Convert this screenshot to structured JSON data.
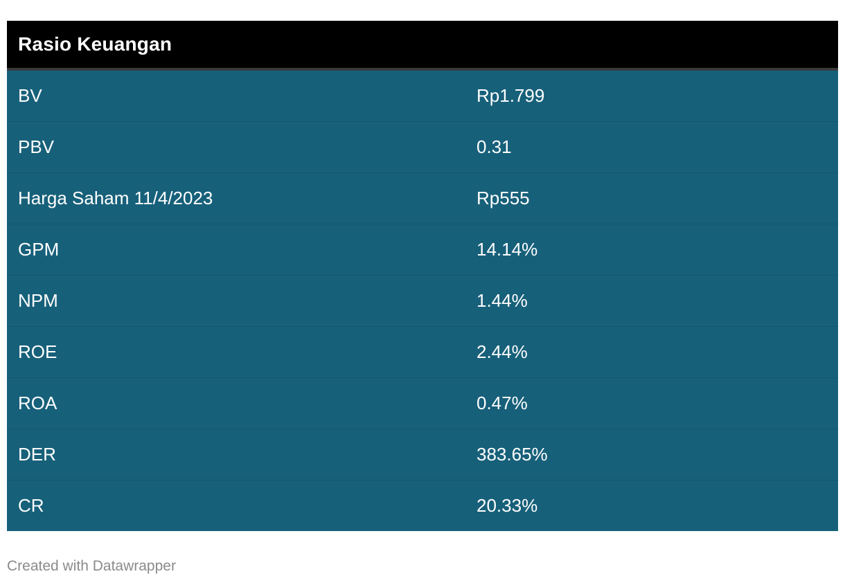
{
  "chart_data": {
    "type": "table",
    "title": "Rasio Keuangan",
    "columns": [
      "",
      ""
    ],
    "rows": [
      {
        "label": "BV",
        "value": "Rp1.799"
      },
      {
        "label": "PBV",
        "value": "0.31"
      },
      {
        "label": "Harga Saham 11/4/2023",
        "value": "Rp555"
      },
      {
        "label": "GPM",
        "value": "14.14%"
      },
      {
        "label": "NPM",
        "value": "1.44%"
      },
      {
        "label": "ROE",
        "value": "2.44%"
      },
      {
        "label": "ROA",
        "value": "0.47%"
      },
      {
        "label": "DER",
        "value": "383.65%"
      },
      {
        "label": "CR",
        "value": "20.33%"
      }
    ]
  },
  "footer": {
    "credit": "Created with Datawrapper"
  },
  "colors": {
    "header_bg": "#000000",
    "row_bg": "#17607a",
    "text": "#ffffff",
    "credit_text": "#8a8a8a"
  }
}
